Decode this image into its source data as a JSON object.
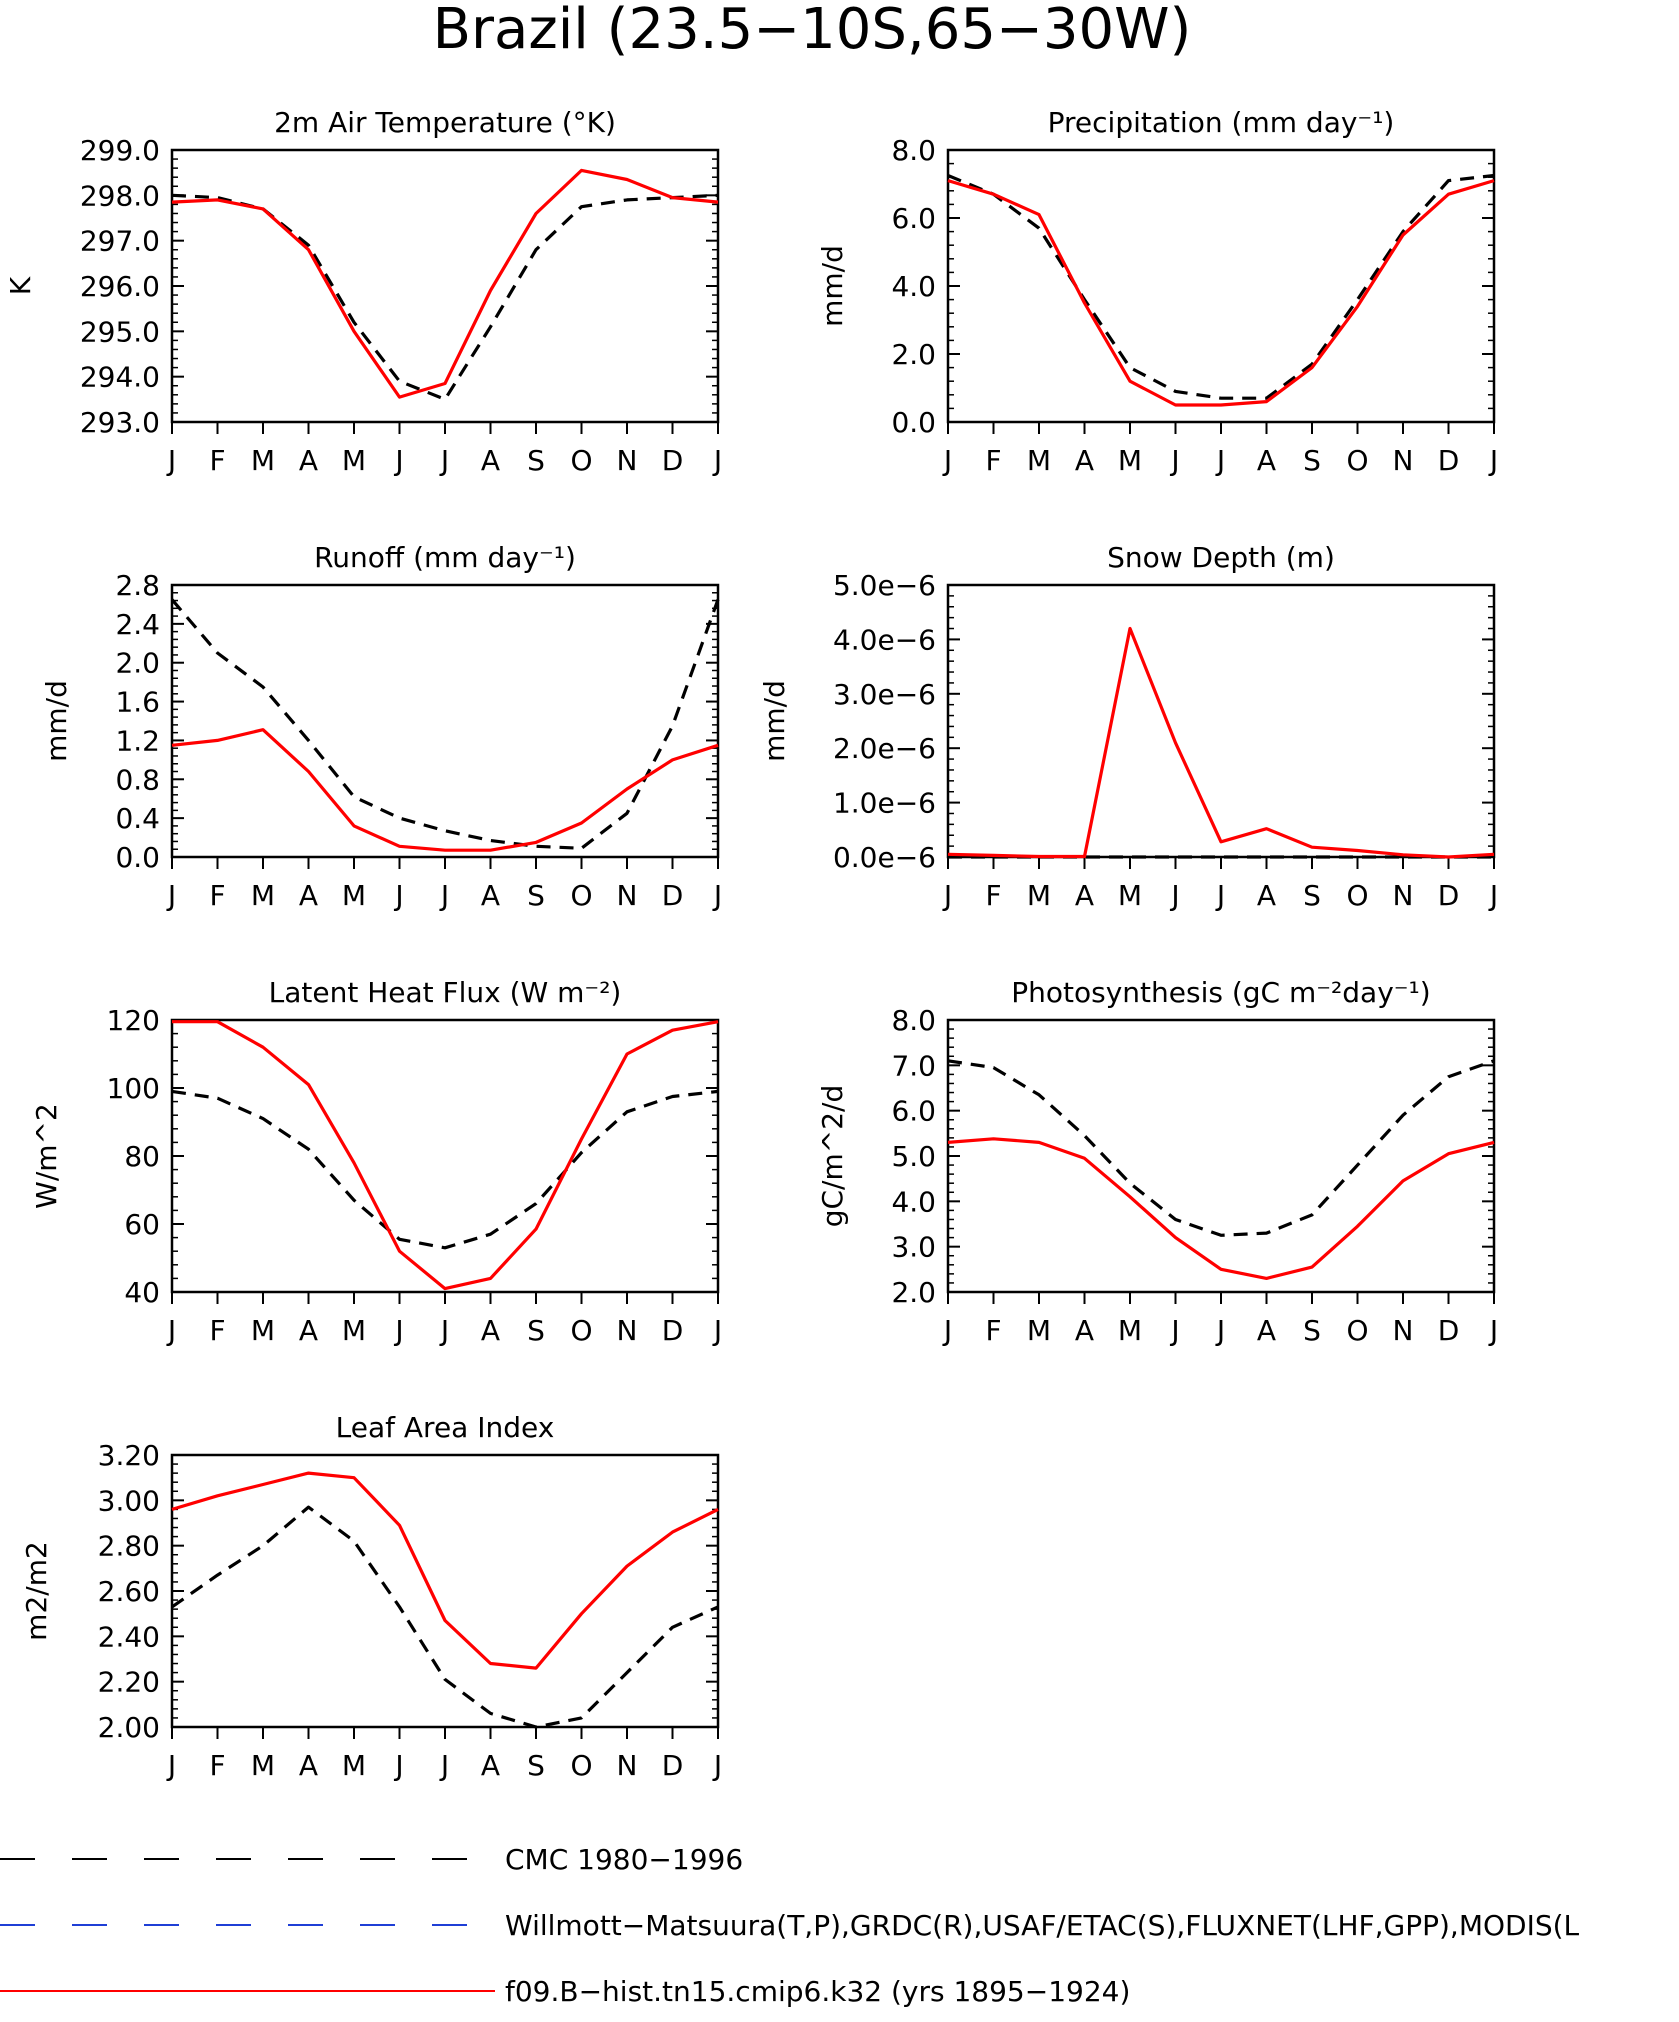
{
  "figure": {
    "title": "Brazil (23.5−10S,65−30W)"
  },
  "colors": {
    "cmc": "#000000",
    "obs": "#1f3fd6",
    "model": "#ff0000",
    "axis": "#000000"
  },
  "legend": {
    "entries": [
      {
        "label": "CMC 1980−1996",
        "color": "#000000",
        "dash": "dashed"
      },
      {
        "label": "Willmott−Matsuura(T,P),GRDC(R),USAF/ETAC(S),FLUXNET(LHF,GPP),MODIS(L",
        "color": "#1f3fd6",
        "dash": "dashed"
      },
      {
        "label": "f09.B−hist.tn15.cmip6.k32 (yrs 1895−1924)",
        "color": "#ff0000",
        "dash": "solid"
      }
    ]
  },
  "chart_data": [
    {
      "type": "line",
      "title": "2m Air Temperature (°K)",
      "ylabel": "K",
      "categories": [
        "J",
        "F",
        "M",
        "A",
        "M",
        "J",
        "J",
        "A",
        "S",
        "O",
        "N",
        "D",
        "J"
      ],
      "ylim": [
        293.0,
        299.0
      ],
      "yticks": [
        "293.0",
        "294.0",
        "295.0",
        "296.0",
        "297.0",
        "298.0",
        "299.0"
      ],
      "series": [
        {
          "name": "CMC 1980−1996",
          "values": [
            298.0,
            297.95,
            297.7,
            296.9,
            295.2,
            293.9,
            293.5,
            295.1,
            296.8,
            297.75,
            297.9,
            297.95,
            298.0
          ]
        },
        {
          "name": "f09.B−hist.tn15.cmip6.k32 (yrs 1895−1924)",
          "values": [
            297.85,
            297.9,
            297.7,
            296.8,
            295.0,
            293.55,
            293.85,
            295.9,
            297.6,
            298.55,
            298.35,
            297.95,
            297.85
          ]
        }
      ]
    },
    {
      "type": "line",
      "title": "Precipitation (mm day⁻¹)",
      "ylabel": "mm/d",
      "categories": [
        "J",
        "F",
        "M",
        "A",
        "M",
        "J",
        "J",
        "A",
        "S",
        "O",
        "N",
        "D",
        "J"
      ],
      "ylim": [
        0.0,
        8.0
      ],
      "yticks": [
        "0.0",
        "2.0",
        "4.0",
        "6.0",
        "8.0"
      ],
      "series": [
        {
          "name": "CMC 1980−1996",
          "values": [
            7.25,
            6.7,
            5.7,
            3.6,
            1.6,
            0.9,
            0.7,
            0.7,
            1.7,
            3.6,
            5.6,
            7.1,
            7.25
          ]
        },
        {
          "name": "f09.B−hist.tn15.cmip6.k32 (yrs 1895−1924)",
          "values": [
            7.1,
            6.7,
            6.1,
            3.5,
            1.2,
            0.5,
            0.5,
            0.6,
            1.6,
            3.4,
            5.5,
            6.7,
            7.1
          ]
        }
      ]
    },
    {
      "type": "line",
      "title": "Runoff (mm day⁻¹)",
      "ylabel": "mm/d",
      "categories": [
        "J",
        "F",
        "M",
        "A",
        "M",
        "J",
        "J",
        "A",
        "S",
        "O",
        "N",
        "D",
        "J"
      ],
      "ylim": [
        0.0,
        2.8
      ],
      "yticks": [
        "0.0",
        "0.4",
        "0.8",
        "1.2",
        "1.6",
        "2.0",
        "2.4",
        "2.8"
      ],
      "series": [
        {
          "name": "CMC 1980−1996",
          "values": [
            2.65,
            2.1,
            1.75,
            1.2,
            0.62,
            0.4,
            0.27,
            0.17,
            0.11,
            0.09,
            0.45,
            1.35,
            2.65
          ]
        },
        {
          "name": "f09.B−hist.tn15.cmip6.k32 (yrs 1895−1924)",
          "values": [
            1.15,
            1.2,
            1.31,
            0.88,
            0.32,
            0.11,
            0.07,
            0.07,
            0.15,
            0.35,
            0.7,
            1.0,
            1.15
          ]
        }
      ]
    },
    {
      "type": "line",
      "title": "Snow Depth (m)",
      "ylabel": "mm/d",
      "categories": [
        "J",
        "F",
        "M",
        "A",
        "M",
        "J",
        "J",
        "A",
        "S",
        "O",
        "N",
        "D",
        "J"
      ],
      "ylim": [
        0.0,
        5e-06
      ],
      "yticks": [
        "0.0e−6",
        "1.0e−6",
        "2.0e−6",
        "3.0e−6",
        "4.0e−6",
        "5.0e−6"
      ],
      "series": [
        {
          "name": "CMC 1980−1996",
          "values": [
            0,
            0,
            0,
            0,
            0,
            0,
            0,
            0,
            0,
            0,
            0,
            0,
            0
          ]
        },
        {
          "name": "f09.B−hist.tn15.cmip6.k32 (yrs 1895−1924)",
          "values": [
            5e-08,
            3e-08,
            1e-08,
            1e-08,
            4.2e-06,
            2.1e-06,
            2.8e-07,
            5.2e-07,
            1.8e-07,
            1.2e-07,
            4e-08,
            0.0,
            5e-08
          ]
        }
      ]
    },
    {
      "type": "line",
      "title": "Latent Heat Flux (W m⁻²)",
      "ylabel": "W/m^2",
      "categories": [
        "J",
        "F",
        "M",
        "A",
        "M",
        "J",
        "J",
        "A",
        "S",
        "O",
        "N",
        "D",
        "J"
      ],
      "ylim": [
        40,
        120
      ],
      "yticks": [
        "40",
        "60",
        "80",
        "100",
        "120"
      ],
      "series": [
        {
          "name": "CMC 1980−1996",
          "values": [
            99,
            97,
            91,
            82,
            67,
            55.5,
            53,
            57,
            66,
            81,
            93,
            97.5,
            99
          ]
        },
        {
          "name": "f09.B−hist.tn15.cmip6.k32 (yrs 1895−1924)",
          "values": [
            119.5,
            119.5,
            112,
            101,
            78,
            52,
            41,
            44,
            58.5,
            85,
            110,
            117,
            119.5
          ]
        }
      ]
    },
    {
      "type": "line",
      "title": "Photosynthesis (gC m⁻²day⁻¹)",
      "ylabel": "gC/m^2/d",
      "categories": [
        "J",
        "F",
        "M",
        "A",
        "M",
        "J",
        "J",
        "A",
        "S",
        "O",
        "N",
        "D",
        "J"
      ],
      "ylim": [
        2.0,
        8.0
      ],
      "yticks": [
        "2.0",
        "3.0",
        "4.0",
        "5.0",
        "6.0",
        "7.0",
        "8.0"
      ],
      "series": [
        {
          "name": "CMC 1980−1996",
          "values": [
            7.1,
            6.95,
            6.35,
            5.45,
            4.4,
            3.6,
            3.25,
            3.3,
            3.7,
            4.8,
            5.9,
            6.75,
            7.1
          ]
        },
        {
          "name": "f09.B−hist.tn15.cmip6.k32 (yrs 1895−1924)",
          "values": [
            5.3,
            5.38,
            5.3,
            4.95,
            4.1,
            3.2,
            2.5,
            2.3,
            2.55,
            3.45,
            4.45,
            5.05,
            5.3
          ]
        }
      ]
    },
    {
      "type": "line",
      "title": "Leaf Area Index",
      "ylabel": "m2/m2",
      "categories": [
        "J",
        "F",
        "M",
        "A",
        "M",
        "J",
        "J",
        "A",
        "S",
        "O",
        "N",
        "D",
        "J"
      ],
      "ylim": [
        2.0,
        3.2
      ],
      "yticks": [
        "2.00",
        "2.20",
        "2.40",
        "2.60",
        "2.80",
        "3.00",
        "3.20"
      ],
      "series": [
        {
          "name": "CMC 1980−1996",
          "values": [
            2.53,
            2.67,
            2.8,
            2.97,
            2.82,
            2.53,
            2.21,
            2.06,
            2.0,
            2.04,
            2.24,
            2.44,
            2.53
          ]
        },
        {
          "name": "f09.B−hist.tn15.cmip6.k32 (yrs 1895−1924)",
          "values": [
            2.96,
            3.02,
            3.07,
            3.12,
            3.1,
            2.89,
            2.47,
            2.28,
            2.26,
            2.5,
            2.71,
            2.86,
            2.96
          ]
        }
      ]
    }
  ]
}
